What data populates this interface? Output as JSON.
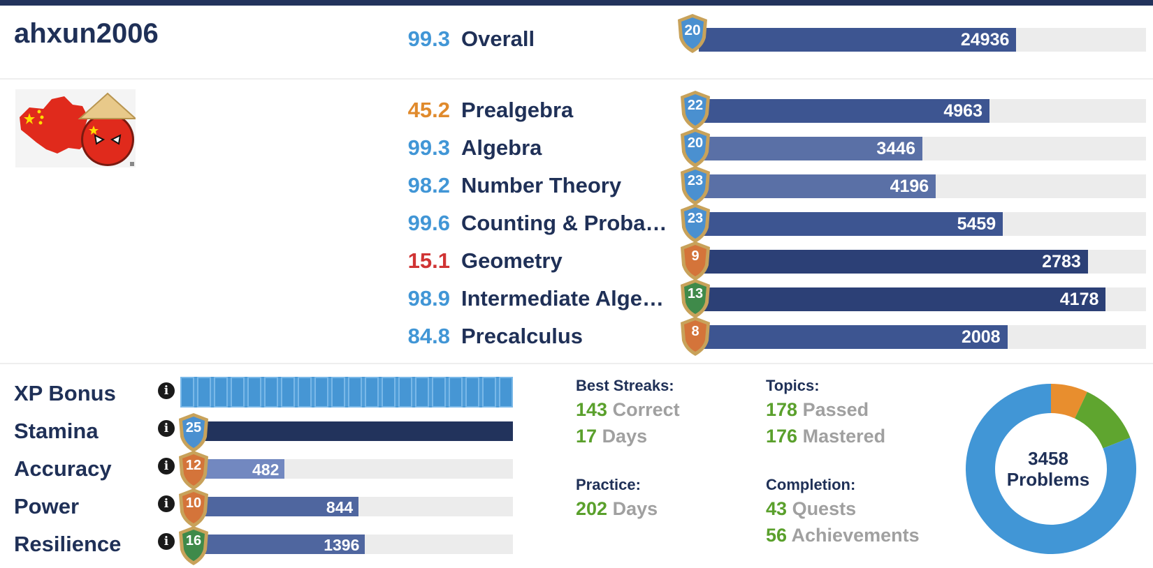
{
  "username": "ahxun2006",
  "overall": {
    "percentile": "99.3",
    "label": "Overall",
    "level": "20",
    "xp": "24936",
    "fill": 0.71,
    "pct_color": "#4196d6",
    "shield": "blue"
  },
  "subjects": [
    {
      "percentile": "45.2",
      "name": "Prealgebra",
      "level": "22",
      "xp": "4963",
      "fill": 0.65,
      "pct_color": "#e08a2c",
      "shield": "blue",
      "tone": "normal"
    },
    {
      "percentile": "99.3",
      "name": "Algebra",
      "level": "20",
      "xp": "3446",
      "fill": 0.5,
      "pct_color": "#4196d6",
      "shield": "blue",
      "tone": "light"
    },
    {
      "percentile": "98.2",
      "name": "Number Theory",
      "level": "23",
      "xp": "4196",
      "fill": 0.53,
      "pct_color": "#4196d6",
      "shield": "blue",
      "tone": "light"
    },
    {
      "percentile": "99.6",
      "name": "Counting & Probability",
      "level": "23",
      "xp": "5459",
      "fill": 0.68,
      "pct_color": "#4196d6",
      "shield": "blue",
      "tone": "normal"
    },
    {
      "percentile": "15.1",
      "name": "Geometry",
      "level": "9",
      "xp": "2783",
      "fill": 0.87,
      "pct_color": "#d03434",
      "shield": "orange",
      "tone": "dark"
    },
    {
      "percentile": "98.9",
      "name": "Intermediate Algebra",
      "level": "13",
      "xp": "4178",
      "fill": 0.91,
      "pct_color": "#4196d6",
      "shield": "green",
      "tone": "dark"
    },
    {
      "percentile": "84.8",
      "name": "Precalculus",
      "level": "8",
      "xp": "2008",
      "fill": 0.69,
      "pct_color": "#4196d6",
      "shield": "orange",
      "tone": "normal"
    }
  ],
  "attributes": {
    "xp_bonus": {
      "label": "XP Bonus",
      "segments": 20,
      "filled": 20
    },
    "stamina": {
      "label": "Stamina",
      "level": "25",
      "fill": 1.0,
      "shield": "blue"
    },
    "accuracy": {
      "label": "Accuracy",
      "level": "12",
      "value": "482",
      "fill": 0.29,
      "shield": "orange"
    },
    "power": {
      "label": "Power",
      "level": "10",
      "value": "844",
      "fill": 0.52,
      "shield": "orange"
    },
    "resilience": {
      "label": "Resilience",
      "level": "16",
      "value": "1396",
      "fill": 0.54,
      "shield": "green"
    }
  },
  "info_glyph": "i",
  "best_streaks": {
    "heading": "Best Streaks:",
    "correct_num": "143",
    "correct_label": "Correct",
    "days_num": "17",
    "days_label": "Days"
  },
  "practice": {
    "heading": "Practice:",
    "days_num": "202",
    "days_label": "Days"
  },
  "topics": {
    "heading": "Topics:",
    "passed_num": "178",
    "passed_label": "Passed",
    "mastered_num": "176",
    "mastered_label": "Mastered"
  },
  "completion": {
    "heading": "Completion:",
    "quests_num": "43",
    "quests_label": "Quests",
    "achievements_num": "56",
    "achievements_label": "Achievements"
  },
  "problems": {
    "count": "3458",
    "label": "Problems"
  },
  "chart_data": {
    "type": "pie",
    "slices": [
      {
        "color": "#e88e2e",
        "fraction": 0.07
      },
      {
        "color": "#5fa52f",
        "fraction": 0.12
      },
      {
        "color": "#4196d6",
        "fraction": 0.81
      }
    ]
  },
  "colors": {
    "blue_shield": "#4a90d0",
    "orange_shield": "#d4743a",
    "green_shield": "#3f8a4a",
    "shield_border": "#c8a25a"
  }
}
